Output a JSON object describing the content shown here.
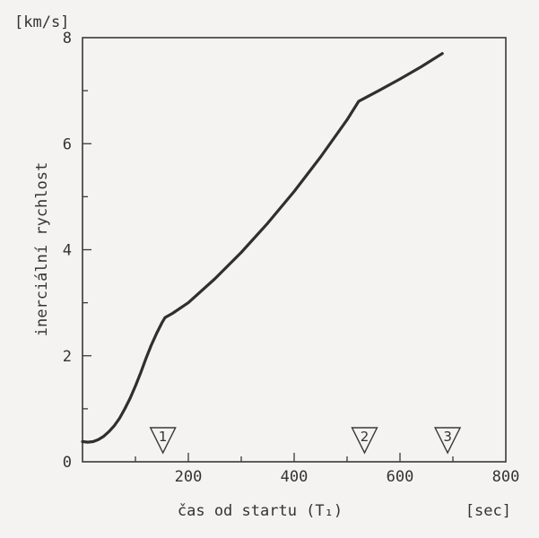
{
  "chart_data": {
    "type": "line",
    "xlabel": "čas od startu (T₁)",
    "x_unit": "[sec]",
    "ylabel": "inerciální rychlost",
    "y_unit": "[km/s]",
    "xlim": [
      0,
      800
    ],
    "ylim": [
      0,
      8
    ],
    "x_ticks": [
      "200",
      "400",
      "600",
      "800"
    ],
    "y_ticks": [
      "0",
      "2",
      "4",
      "6",
      "8"
    ],
    "grid": false,
    "series": [
      {
        "x": [
          0,
          10,
          20,
          30,
          40,
          50,
          60,
          70,
          80,
          90,
          100,
          110,
          120,
          130,
          140,
          150,
          156,
          170,
          200,
          250,
          300,
          350,
          400,
          450,
          500,
          522,
          560,
          600,
          640,
          680
        ],
        "y": [
          0.38,
          0.37,
          0.38,
          0.42,
          0.48,
          0.57,
          0.68,
          0.82,
          1.0,
          1.2,
          1.43,
          1.68,
          1.95,
          2.2,
          2.42,
          2.62,
          2.72,
          2.8,
          3.0,
          3.45,
          3.95,
          4.5,
          5.1,
          5.75,
          6.45,
          6.8,
          7.0,
          7.22,
          7.45,
          7.7
        ]
      }
    ],
    "markers": [
      {
        "label": "1",
        "x": 152
      },
      {
        "label": "2",
        "x": 533
      },
      {
        "label": "3",
        "x": 690
      }
    ]
  }
}
